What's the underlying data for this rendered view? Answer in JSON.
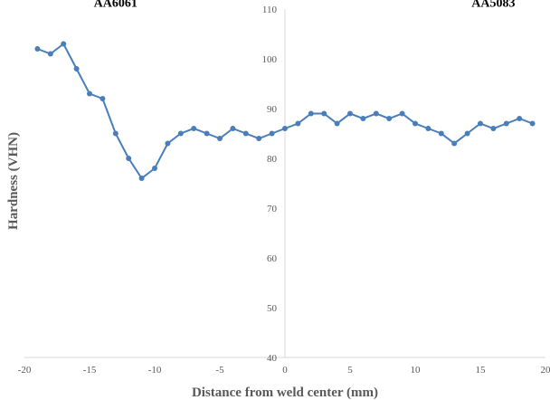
{
  "chart_data": {
    "type": "line",
    "title": "",
    "xlabel": "Distance from weld center (mm)",
    "ylabel": "Hardness (VHN)",
    "xlim": [
      -20,
      20
    ],
    "ylim": [
      40,
      110
    ],
    "x_ticks": [
      -20,
      -15,
      -10,
      -5,
      0,
      5,
      10,
      15,
      20
    ],
    "x_tick_labels": [
      "-20",
      "-15",
      "-10",
      "-5",
      "0",
      "5",
      "10",
      "15",
      "20"
    ],
    "y_ticks": [
      40,
      50,
      60,
      70,
      80,
      90,
      100,
      110
    ],
    "y_tick_labels": [
      "40",
      "50",
      "60",
      "70",
      "80",
      "90",
      "100",
      "110"
    ],
    "grid": false,
    "annotations": [
      {
        "text": "AA6061",
        "x": -13,
        "y": 110.5
      },
      {
        "text": "AA5083",
        "x": 16,
        "y": 110.5
      }
    ],
    "series": [
      {
        "color": "#4a7ebb",
        "x": [
          -19,
          -18,
          -17,
          -16,
          -15,
          -14,
          -13,
          -12,
          -11,
          -10,
          -9,
          -8,
          -7,
          -6,
          -5,
          -4,
          -3,
          -2,
          -1,
          0,
          1,
          2,
          3,
          4,
          5,
          6,
          7,
          8,
          9,
          10,
          11,
          12,
          13,
          14,
          15,
          16,
          17,
          18,
          19
        ],
        "y": [
          102,
          101,
          103,
          98,
          93,
          92,
          85,
          80,
          76,
          78,
          83,
          85,
          86,
          85,
          84,
          86,
          85,
          84,
          85,
          86,
          87,
          89,
          89,
          87,
          89,
          88,
          89,
          88,
          89,
          87,
          86,
          85,
          83,
          85,
          87,
          86,
          87,
          88,
          87
        ]
      }
    ]
  }
}
